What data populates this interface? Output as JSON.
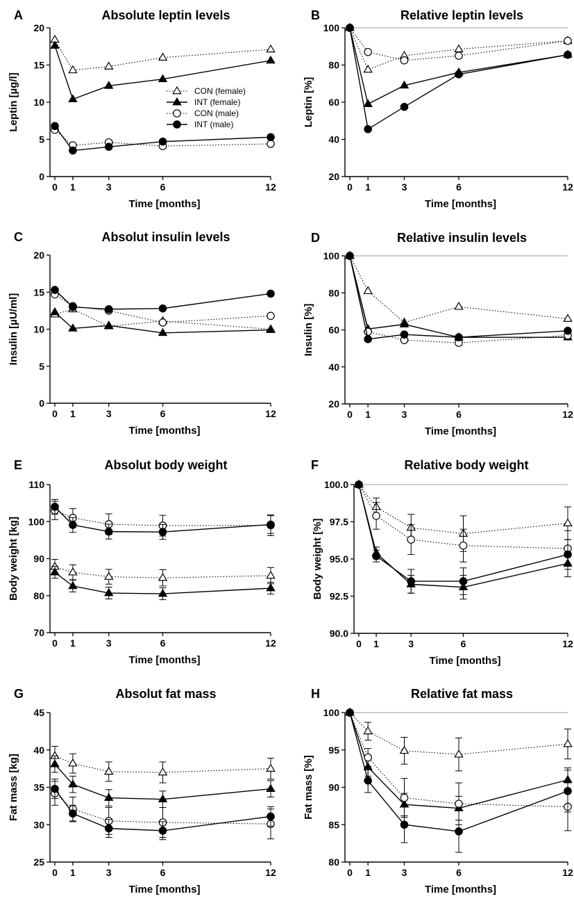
{
  "series_styles": [
    {
      "key": "con_f",
      "marker": "triangle",
      "filled": false,
      "dotted": true
    },
    {
      "key": "int_f",
      "marker": "triangle",
      "filled": true,
      "dotted": false
    },
    {
      "key": "con_m",
      "marker": "circle",
      "filled": false,
      "dotted": true
    },
    {
      "key": "int_m",
      "marker": "circle",
      "filled": true,
      "dotted": false
    }
  ],
  "chart_data": [
    {
      "letter": "A",
      "type": "line",
      "title": "Absolute leptin levels",
      "ylabel": "Leptin [µg/l]",
      "xlabel": "Time [months]",
      "ylim": [
        0,
        20
      ],
      "yticks": [
        "0",
        "5",
        "10",
        "15",
        "20"
      ],
      "x": [
        0,
        1,
        3,
        6,
        12
      ],
      "xticks": [
        "0",
        "1",
        "3",
        "6",
        "12"
      ],
      "legend": {
        "position": "center",
        "entries": [
          "CON (female)",
          "INT  (female)",
          "CON (male)",
          "INT  (male)"
        ]
      },
      "series": [
        {
          "key": "con_f",
          "name": "CON (female)",
          "values": [
            18.4,
            14.3,
            14.8,
            16.0,
            17.1
          ]
        },
        {
          "key": "int_f",
          "name": "INT  (female)",
          "values": [
            17.6,
            10.4,
            12.2,
            13.1,
            15.6
          ]
        },
        {
          "key": "con_m",
          "name": "CON (male)",
          "values": [
            6.3,
            4.2,
            4.6,
            4.1,
            4.4
          ]
        },
        {
          "key": "int_m",
          "name": "INT  (male)",
          "values": [
            6.8,
            3.5,
            4.0,
            4.7,
            5.3
          ]
        }
      ]
    },
    {
      "letter": "B",
      "type": "line",
      "title": "Relative leptin levels",
      "ylabel": "Leptin [%]",
      "xlabel": "Time [months]",
      "ylim": [
        20,
        100
      ],
      "yticks": [
        "20",
        "40",
        "60",
        "80",
        "100"
      ],
      "x": [
        0,
        1,
        3,
        6,
        12
      ],
      "xticks": [
        "0",
        "1",
        "3",
        "6",
        "12"
      ],
      "refline": 100,
      "series": [
        {
          "key": "con_f",
          "values": [
            100,
            77.5,
            85,
            88.5,
            93
          ]
        },
        {
          "key": "int_f",
          "values": [
            100,
            59,
            69,
            76,
            85.5
          ]
        },
        {
          "key": "con_m",
          "values": [
            100,
            87,
            82.5,
            85,
            93
          ]
        },
        {
          "key": "int_m",
          "values": [
            100,
            45.5,
            57.5,
            75,
            85.5
          ]
        }
      ]
    },
    {
      "letter": "C",
      "type": "line",
      "title": "Absolut insulin levels",
      "ylabel": "Insulin [µU/ml]",
      "xlabel": "Time [months]",
      "ylim": [
        0,
        20
      ],
      "yticks": [
        "0",
        "5",
        "10",
        "15",
        "20"
      ],
      "x": [
        0,
        1,
        3,
        6,
        12
      ],
      "xticks": [
        "0",
        "1",
        "3",
        "6",
        "12"
      ],
      "series": [
        {
          "key": "con_f",
          "values": [
            12.0,
            12.7,
            10.4,
            11.1,
            10.0
          ]
        },
        {
          "key": "int_f",
          "values": [
            12.3,
            10.1,
            10.5,
            9.5,
            9.9
          ]
        },
        {
          "key": "con_m",
          "values": [
            14.7,
            13.1,
            12.5,
            10.9,
            11.8
          ]
        },
        {
          "key": "int_m",
          "values": [
            15.3,
            13.0,
            12.7,
            12.8,
            14.8
          ]
        }
      ]
    },
    {
      "letter": "D",
      "type": "line",
      "title": "Relative insulin levels",
      "ylabel": "Insulin [%]",
      "xlabel": "Time [months]",
      "ylim": [
        20,
        100
      ],
      "yticks": [
        "20",
        "40",
        "60",
        "80",
        "100"
      ],
      "x": [
        0,
        1,
        3,
        6,
        12
      ],
      "xticks": [
        "0",
        "1",
        "3",
        "6",
        "12"
      ],
      "refline": 100,
      "series": [
        {
          "key": "con_f",
          "values": [
            100,
            81,
            64,
            72.5,
            66
          ]
        },
        {
          "key": "int_f",
          "values": [
            100,
            60.5,
            63,
            56,
            56
          ]
        },
        {
          "key": "con_m",
          "values": [
            100,
            59,
            54.5,
            53,
            57
          ]
        },
        {
          "key": "int_m",
          "values": [
            100,
            55,
            57.5,
            56,
            59.5
          ]
        }
      ]
    },
    {
      "letter": "E",
      "type": "line",
      "title": "Absolut body weight",
      "ylabel": "Body weight [kg]",
      "xlabel": "Time [months]",
      "ylim": [
        70,
        110
      ],
      "yticks": [
        "70",
        "80",
        "90",
        "100",
        "110"
      ],
      "x": [
        0,
        1,
        3,
        6,
        12
      ],
      "xticks": [
        "0",
        "1",
        "3",
        "6",
        "12"
      ],
      "series": [
        {
          "key": "con_f",
          "values": [
            87.8,
            86.3,
            85.1,
            84.8,
            85.4
          ],
          "err": [
            2.0,
            2.0,
            2.0,
            2.2,
            2.2
          ]
        },
        {
          "key": "int_f",
          "values": [
            86.3,
            82.6,
            80.7,
            80.5,
            82.0
          ],
          "err": [
            1.6,
            1.6,
            1.6,
            1.6,
            1.6
          ]
        },
        {
          "key": "con_m",
          "values": [
            103.0,
            101.0,
            99.3,
            98.9,
            99.0
          ],
          "err": [
            2.5,
            2.5,
            2.8,
            2.8,
            2.8
          ]
        },
        {
          "key": "int_m",
          "values": [
            104.0,
            99.1,
            97.3,
            97.2,
            99.2
          ],
          "err": [
            2.0,
            2.0,
            2.0,
            2.0,
            2.4
          ]
        }
      ]
    },
    {
      "letter": "F",
      "type": "line",
      "title": "Relative body weight",
      "ylabel": "Body weight [%]",
      "xlabel": "Time [months]",
      "ylim": [
        90,
        100
      ],
      "yticks": [
        "90.0",
        "92.5",
        "95.0",
        "97.5",
        "100.0"
      ],
      "x": [
        0,
        1,
        3,
        6,
        12
      ],
      "xticks": [
        "0",
        "1",
        "3",
        "6",
        "12"
      ],
      "refline": 100,
      "series": [
        {
          "key": "con_f",
          "values": [
            100,
            98.5,
            97.1,
            96.7,
            97.4
          ],
          "err": [
            0,
            0.6,
            0.9,
            1.2,
            1.1
          ]
        },
        {
          "key": "int_f",
          "values": [
            100,
            95.4,
            93.3,
            93.1,
            94.7
          ],
          "err": [
            0,
            0.4,
            0.6,
            0.8,
            0.9
          ]
        },
        {
          "key": "con_m",
          "values": [
            100,
            97.9,
            96.3,
            95.9,
            95.7
          ],
          "err": [
            0,
            0.9,
            1.0,
            1.1,
            1.2
          ]
        },
        {
          "key": "int_m",
          "values": [
            100,
            95.2,
            93.5,
            93.5,
            95.3
          ],
          "err": [
            0,
            0.4,
            0.8,
            0.9,
            1.0
          ]
        }
      ]
    },
    {
      "letter": "G",
      "type": "line",
      "title": "Absolut fat mass",
      "ylabel": "Fat mass [kg]",
      "xlabel": "Time [months]",
      "ylim": [
        25,
        45
      ],
      "yticks": [
        "25",
        "30",
        "35",
        "40",
        "45"
      ],
      "x": [
        0,
        1,
        3,
        6,
        12
      ],
      "xticks": [
        "0",
        "1",
        "3",
        "6",
        "12"
      ],
      "series": [
        {
          "key": "con_f",
          "values": [
            39.2,
            38.2,
            37.1,
            37.0,
            37.5
          ],
          "err": [
            1.3,
            1.3,
            1.3,
            1.4,
            1.4
          ]
        },
        {
          "key": "int_f",
          "values": [
            38.1,
            35.4,
            33.6,
            33.4,
            34.8
          ],
          "err": [
            1.1,
            1.1,
            1.1,
            1.1,
            1.1
          ]
        },
        {
          "key": "con_m",
          "values": [
            34.2,
            32.1,
            30.5,
            30.3,
            30.1
          ],
          "err": [
            1.6,
            1.6,
            1.8,
            2.0,
            2.0
          ]
        },
        {
          "key": "int_m",
          "values": [
            34.8,
            31.5,
            29.5,
            29.2,
            31.1
          ],
          "err": [
            1.3,
            1.1,
            1.2,
            1.2,
            1.3
          ]
        }
      ]
    },
    {
      "letter": "H",
      "type": "line",
      "title": "Relative fat mass",
      "ylabel": "Fat mass [%]",
      "xlabel": "Time [months]",
      "ylim": [
        80,
        100
      ],
      "yticks": [
        "80",
        "85",
        "90",
        "95",
        "100"
      ],
      "x": [
        0,
        1,
        3,
        6,
        12
      ],
      "xticks": [
        "0",
        "1",
        "3",
        "6",
        "12"
      ],
      "refline": 100,
      "series": [
        {
          "key": "con_f",
          "values": [
            100,
            97.5,
            94.9,
            94.4,
            95.8
          ],
          "err": [
            0,
            1.2,
            1.8,
            2.2,
            2.0
          ]
        },
        {
          "key": "int_f",
          "values": [
            100,
            92.7,
            87.7,
            87.2,
            91.0
          ],
          "err": [
            0,
            1.2,
            1.5,
            1.6,
            1.6
          ]
        },
        {
          "key": "con_m",
          "values": [
            100,
            94.0,
            88.6,
            87.8,
            87.4
          ],
          "err": [
            0,
            1.2,
            2.6,
            2.8,
            3.2
          ]
        },
        {
          "key": "int_m",
          "values": [
            100,
            90.9,
            85.0,
            84.1,
            89.5
          ],
          "err": [
            0,
            1.6,
            2.4,
            2.8,
            2.8
          ]
        }
      ]
    }
  ]
}
